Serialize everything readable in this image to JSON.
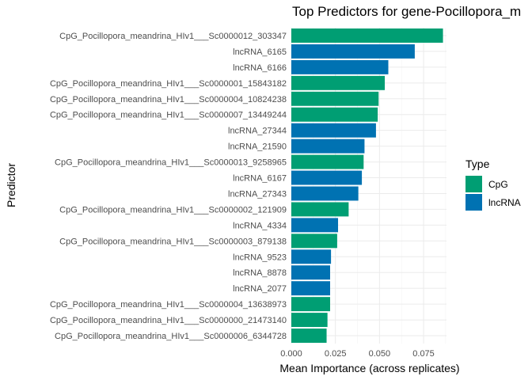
{
  "chart_data": {
    "type": "bar",
    "orientation": "horizontal",
    "title": "Top Predictors for gene-Pocillopora_m",
    "xlabel": "Mean Importance (across replicates)",
    "ylabel": "Predictor",
    "xlim": [
      0,
      0.088
    ],
    "x_ticks": [
      0.0,
      0.025,
      0.05,
      0.075
    ],
    "x_tick_labels": [
      "0.000",
      "0.025",
      "0.050",
      "0.075"
    ],
    "grid": true,
    "legend": {
      "title": "Type",
      "placement": "right",
      "entries": [
        {
          "name": "CpG",
          "color": "#009E73"
        },
        {
          "name": "lncRNA",
          "color": "#0072B2"
        }
      ]
    },
    "bars": [
      {
        "label": "CpG_Pocillopora_meandrina_HIv1___Sc0000012_303347",
        "value": 0.086,
        "type": "CpG"
      },
      {
        "label": "lncRNA_6165",
        "value": 0.07,
        "type": "lncRNA"
      },
      {
        "label": "lncRNA_6166",
        "value": 0.055,
        "type": "lncRNA"
      },
      {
        "label": "CpG_Pocillopora_meandrina_HIv1___Sc0000001_15843182",
        "value": 0.053,
        "type": "CpG"
      },
      {
        "label": "CpG_Pocillopora_meandrina_HIv1___Sc0000004_10824238",
        "value": 0.0495,
        "type": "CpG"
      },
      {
        "label": "CpG_Pocillopora_meandrina_HIv1___Sc0000007_13449244",
        "value": 0.049,
        "type": "CpG"
      },
      {
        "label": "lncRNA_27344",
        "value": 0.048,
        "type": "lncRNA"
      },
      {
        "label": "lncRNA_21590",
        "value": 0.0415,
        "type": "lncRNA"
      },
      {
        "label": "CpG_Pocillopora_meandrina_HIv1___Sc0000013_9258965",
        "value": 0.041,
        "type": "CpG"
      },
      {
        "label": "lncRNA_6167",
        "value": 0.04,
        "type": "lncRNA"
      },
      {
        "label": "lncRNA_27343",
        "value": 0.038,
        "type": "lncRNA"
      },
      {
        "label": "CpG_Pocillopora_meandrina_HIv1___Sc0000002_121909",
        "value": 0.0325,
        "type": "CpG"
      },
      {
        "label": "lncRNA_4334",
        "value": 0.0265,
        "type": "lncRNA"
      },
      {
        "label": "CpG_Pocillopora_meandrina_HIv1___Sc0000003_879138",
        "value": 0.026,
        "type": "CpG"
      },
      {
        "label": "lncRNA_9523",
        "value": 0.0225,
        "type": "lncRNA"
      },
      {
        "label": "lncRNA_8878",
        "value": 0.022,
        "type": "lncRNA"
      },
      {
        "label": "lncRNA_2077",
        "value": 0.022,
        "type": "lncRNA"
      },
      {
        "label": "CpG_Pocillopora_meandrina_HIv1___Sc0000004_13638973",
        "value": 0.022,
        "type": "CpG"
      },
      {
        "label": "CpG_Pocillopora_meandrina_HIv1___Sc0000000_21473140",
        "value": 0.0205,
        "type": "CpG"
      },
      {
        "label": "CpG_Pocillopora_meandrina_HIv1___Sc0000006_6344728",
        "value": 0.02,
        "type": "CpG"
      }
    ]
  }
}
